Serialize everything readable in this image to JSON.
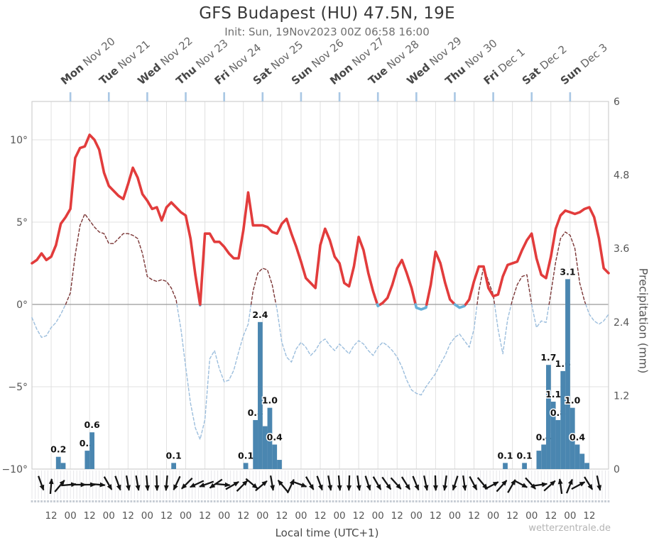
{
  "header": {
    "title": "GFS Budapest (HU) 47.5N, 19E",
    "subtitle": "Init: Sun, 19Nov2023 00Z 06:58 16:00"
  },
  "footer": {
    "x_axis_title": "Local time (UTC+1)",
    "watermark": "wetterzentrale.de"
  },
  "axes": {
    "y_left_tick_labels": [
      "10°",
      "5°",
      "0°",
      "−5°",
      "−10°"
    ],
    "y_left_tick_values": [
      10,
      5,
      0,
      -5,
      -10
    ],
    "y_right_title": "Precipitation (mm)",
    "y_right_tick_labels": [
      "6",
      "4.8",
      "3.6",
      "2.4",
      "1.2",
      "0"
    ],
    "y_right_tick_values": [
      6,
      4.8,
      3.6,
      2.4,
      1.2,
      0
    ],
    "x_tick_labels": [
      "12",
      "00",
      "12",
      "00",
      "12",
      "00",
      "12",
      "00",
      "12",
      "00",
      "12",
      "00",
      "12",
      "00",
      "12",
      "00",
      "12",
      "00",
      "12",
      "00",
      "12",
      "00",
      "12",
      "00",
      "12",
      "00",
      "12",
      "00",
      "12"
    ],
    "x_tick_hours": [
      12,
      24,
      36,
      48,
      60,
      72,
      84,
      96,
      108,
      120,
      132,
      144,
      156,
      168,
      180,
      192,
      204,
      216,
      228,
      240,
      252,
      264,
      276,
      288,
      300,
      312,
      324,
      336,
      348
    ]
  },
  "days": [
    {
      "weekday": "Mon",
      "date": "Nov 20"
    },
    {
      "weekday": "Tue",
      "date": "Nov 21"
    },
    {
      "weekday": "Wed",
      "date": "Nov 22"
    },
    {
      "weekday": "Thu",
      "date": "Nov 23"
    },
    {
      "weekday": "Fri",
      "date": "Nov 24"
    },
    {
      "weekday": "Sat",
      "date": "Nov 25"
    },
    {
      "weekday": "Sun",
      "date": "Nov 26"
    },
    {
      "weekday": "Mon",
      "date": "Nov 27"
    },
    {
      "weekday": "Tue",
      "date": "Nov 28"
    },
    {
      "weekday": "Wed",
      "date": "Nov 29"
    },
    {
      "weekday": "Thu",
      "date": "Nov 30"
    },
    {
      "weekday": "Fri",
      "date": "Dec 1"
    },
    {
      "weekday": "Sat",
      "date": "Dec 2"
    },
    {
      "weekday": "Sun",
      "date": "Dec 3"
    }
  ],
  "chart_data": {
    "type": "line+bar",
    "x_start": "Sun 19 Nov 2023 00:00 local",
    "x_end": "Mon 4 Dec 2023 00:00 local",
    "step_hours": 3,
    "temp_ylim": [
      -10,
      12.3
    ],
    "precip_ylim": [
      0,
      6
    ],
    "colors": {
      "solid_above_zero": "#e23c3c",
      "solid_below_zero": "#66b0d8",
      "dashed_above_zero": "#7a3535",
      "dashed_below_zero": "#9cbedd",
      "bars": "#4a86b0",
      "grid": "#e0e0e0",
      "zero_line": "#999999",
      "day_tick": "#a9c7e4"
    },
    "series": [
      {
        "name": "temperature-2m-solid",
        "style": "solid",
        "unit": "degC",
        "values": [
          2.5,
          2.7,
          3.1,
          2.7,
          2.9,
          3.6,
          4.9,
          5.3,
          5.8,
          8.9,
          9.5,
          9.6,
          10.3,
          10.0,
          9.4,
          8.0,
          7.2,
          6.9,
          6.6,
          6.4,
          7.3,
          8.3,
          7.7,
          6.7,
          6.3,
          5.8,
          5.9,
          5.1,
          5.9,
          6.2,
          5.9,
          5.6,
          5.4,
          4.0,
          1.8,
          -0.05,
          4.3,
          4.3,
          3.8,
          3.8,
          3.5,
          3.1,
          2.8,
          2.8,
          4.5,
          6.8,
          4.8,
          4.8,
          4.8,
          4.7,
          4.4,
          4.3,
          4.9,
          5.2,
          4.3,
          3.5,
          2.6,
          1.6,
          1.3,
          1.0,
          3.6,
          4.6,
          3.9,
          2.9,
          2.5,
          1.3,
          1.1,
          2.3,
          4.1,
          3.3,
          1.9,
          0.8,
          -0.1,
          0.1,
          0.4,
          1.2,
          2.2,
          2.7,
          1.9,
          1.0,
          -0.2,
          -0.3,
          -0.2,
          1.2,
          3.2,
          2.5,
          1.3,
          0.3,
          0.0,
          -0.2,
          -0.1,
          0.3,
          1.4,
          2.3,
          2.3,
          1.0,
          0.5,
          0.6,
          1.7,
          2.4,
          2.5,
          2.6,
          3.3,
          3.9,
          4.3,
          2.8,
          1.8,
          1.6,
          2.9,
          4.6,
          5.4,
          5.7,
          5.6,
          5.5,
          5.6,
          5.8,
          5.9,
          5.3,
          4.0,
          2.2,
          1.9
        ]
      },
      {
        "name": "dashed-temperature-line",
        "style": "dashed",
        "unit": "degC",
        "values": [
          -0.8,
          -1.5,
          -2.0,
          -1.9,
          -1.4,
          -1.1,
          -0.6,
          0.0,
          0.7,
          3.0,
          4.8,
          5.5,
          5.1,
          4.7,
          4.4,
          4.3,
          3.7,
          3.7,
          4.0,
          4.3,
          4.3,
          4.2,
          4.0,
          3.1,
          1.7,
          1.5,
          1.4,
          1.5,
          1.4,
          1.0,
          0.3,
          -1.5,
          -3.8,
          -6.0,
          -7.5,
          -8.2,
          -7.0,
          -3.3,
          -2.8,
          -3.9,
          -4.7,
          -4.6,
          -4.0,
          -2.9,
          -1.9,
          -1.2,
          0.8,
          1.9,
          2.2,
          2.1,
          1.2,
          -0.3,
          -2.3,
          -3.2,
          -3.5,
          -2.7,
          -2.3,
          -2.6,
          -3.1,
          -2.8,
          -2.3,
          -2.1,
          -2.5,
          -2.8,
          -2.4,
          -2.7,
          -3.0,
          -2.5,
          -2.2,
          -2.4,
          -2.8,
          -3.1,
          -2.6,
          -2.3,
          -2.5,
          -2.8,
          -3.2,
          -3.8,
          -4.6,
          -5.2,
          -5.4,
          -5.5,
          -5.0,
          -4.6,
          -4.2,
          -3.6,
          -3.1,
          -2.4,
          -2.0,
          -1.8,
          -2.2,
          -2.6,
          -1.5,
          0.8,
          2.3,
          1.4,
          0.6,
          -1.5,
          -3.0,
          -0.9,
          0.3,
          1.2,
          1.7,
          1.8,
          0.0,
          -1.4,
          -1.0,
          -1.1,
          0.7,
          2.6,
          4.0,
          4.4,
          4.2,
          3.4,
          1.3,
          0.2,
          -0.6,
          -1.0,
          -1.2,
          -1.0,
          -0.6
        ]
      }
    ],
    "precipitation_bars": {
      "unit": "mm",
      "slot_hours": 3,
      "bars": [
        {
          "start_hour": 15,
          "mm": 0.2,
          "label": "0.2"
        },
        {
          "start_hour": 18,
          "mm": 0.1,
          "label": ""
        },
        {
          "start_hour": 33,
          "mm": 0.3,
          "label": "0.3"
        },
        {
          "start_hour": 36,
          "mm": 0.6,
          "label": "0.6"
        },
        {
          "start_hour": 87,
          "mm": 0.1,
          "label": "0.1"
        },
        {
          "start_hour": 132,
          "mm": 0.1,
          "label": "0.1"
        },
        {
          "start_hour": 138,
          "mm": 0.8,
          "label": "0.8"
        },
        {
          "start_hour": 141,
          "mm": 2.4,
          "label": "2.4"
        },
        {
          "start_hour": 144,
          "mm": 0.7,
          "label": ""
        },
        {
          "start_hour": 147,
          "mm": 1.0,
          "label": "1.0"
        },
        {
          "start_hour": 150,
          "mm": 0.4,
          "label": "0.4"
        },
        {
          "start_hour": 153,
          "mm": 0.15,
          "label": ""
        },
        {
          "start_hour": 294,
          "mm": 0.1,
          "label": "0.1"
        },
        {
          "start_hour": 306,
          "mm": 0.1,
          "label": "0.1"
        },
        {
          "start_hour": 315,
          "mm": 0.3,
          "label": ""
        },
        {
          "start_hour": 318,
          "mm": 0.4,
          "label": "0.4"
        },
        {
          "start_hour": 321,
          "mm": 1.7,
          "label": "1.7"
        },
        {
          "start_hour": 324,
          "mm": 1.1,
          "label": "1.1"
        },
        {
          "start_hour": 327,
          "mm": 0.8,
          "label": "0.8"
        },
        {
          "start_hour": 330,
          "mm": 1.6,
          "label": "1.6"
        },
        {
          "start_hour": 333,
          "mm": 3.1,
          "label": "3.1"
        },
        {
          "start_hour": 336,
          "mm": 1.0,
          "label": "1.0"
        },
        {
          "start_hour": 339,
          "mm": 0.4,
          "label": "0.4"
        },
        {
          "start_hour": 342,
          "mm": 0.25,
          "label": ""
        },
        {
          "start_hour": 345,
          "mm": 0.1,
          "label": ""
        }
      ]
    },
    "wind_arrows": {
      "step_hours": 6,
      "first_hour": 6,
      "rotation_deg_from_north": [
        160,
        5,
        40,
        85,
        90,
        90,
        95,
        150,
        160,
        170,
        170,
        175,
        178,
        185,
        205,
        225,
        245,
        250,
        235,
        95,
        60,
        45,
        130,
        50,
        170,
        320,
        25,
        110,
        150,
        160,
        170,
        175,
        182,
        172,
        162,
        150,
        145,
        138,
        148,
        158,
        168,
        178,
        188,
        198,
        172,
        152,
        140,
        62,
        42,
        30,
        118,
        138,
        82,
        48,
        352,
        22,
        62,
        148,
        168
      ]
    }
  }
}
